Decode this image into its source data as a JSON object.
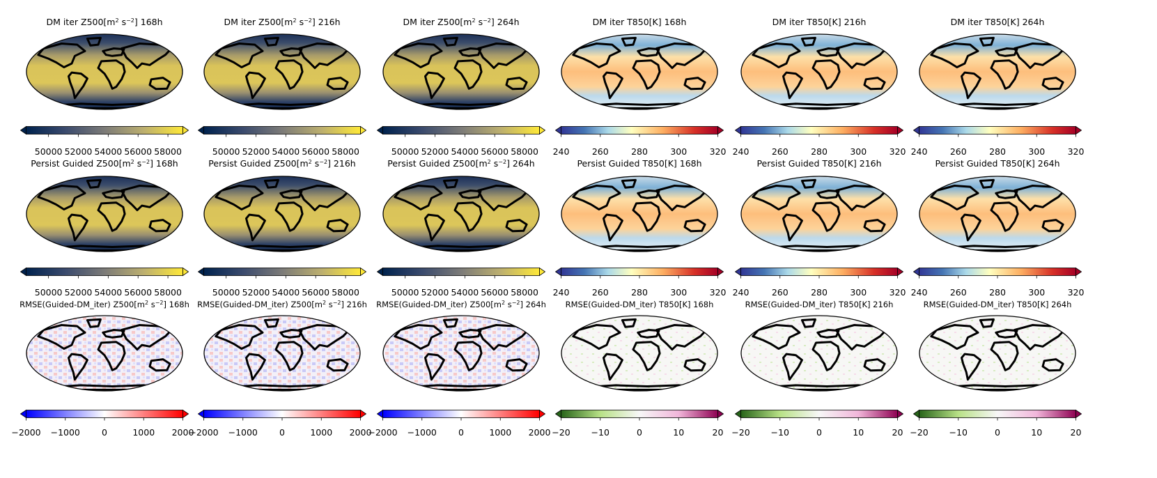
{
  "figure": {
    "rows": [
      {
        "panels": [
          {
            "title": "DM iter Z500[m$^2$ s$^{-2}$] 168h",
            "title_main": "DM iter Z500[m",
            "title_sup1": "2",
            "title_mid": " s",
            "title_sup2": "−2",
            "title_end": "] 168h",
            "colormap": "cividis",
            "field": "z500",
            "colorbar": {
              "ticks": [
                50000,
                52000,
                54000,
                56000,
                58000
              ],
              "range": [
                48500,
                59000
              ],
              "extend": "both"
            }
          },
          {
            "title_main": "DM iter Z500[m",
            "title_sup1": "2",
            "title_mid": " s",
            "title_sup2": "−2",
            "title_end": "] 216h",
            "colormap": "cividis",
            "field": "z500",
            "colorbar": {
              "ticks": [
                50000,
                52000,
                54000,
                56000,
                58000
              ],
              "range": [
                48500,
                59000
              ],
              "extend": "both"
            }
          },
          {
            "title_main": "DM iter Z500[m",
            "title_sup1": "2",
            "title_mid": " s",
            "title_sup2": "−2",
            "title_end": "] 264h",
            "colormap": "cividis",
            "field": "z500",
            "colorbar": {
              "ticks": [
                50000,
                52000,
                54000,
                56000,
                58000
              ],
              "range": [
                48500,
                59000
              ],
              "extend": "both"
            }
          },
          {
            "title_main": "DM iter T850[K] 168h",
            "colormap": "RdYlBu_r",
            "field": "t850",
            "colorbar": {
              "ticks": [
                240,
                260,
                280,
                300,
                320
              ],
              "range": [
                240,
                320
              ],
              "extend": "both"
            }
          },
          {
            "title_main": "DM iter T850[K] 216h",
            "colormap": "RdYlBu_r",
            "field": "t850",
            "colorbar": {
              "ticks": [
                240,
                260,
                280,
                300,
                320
              ],
              "range": [
                240,
                320
              ],
              "extend": "both"
            }
          },
          {
            "title_main": "DM iter T850[K] 264h",
            "colormap": "RdYlBu_r",
            "field": "t850",
            "colorbar": {
              "ticks": [
                240,
                260,
                280,
                300,
                320
              ],
              "range": [
                240,
                320
              ],
              "extend": "both"
            }
          }
        ]
      },
      {
        "panels": [
          {
            "title_main": "Persist Guided Z500[m",
            "title_sup1": "2",
            "title_mid": " s",
            "title_sup2": "−2",
            "title_end": "] 168h",
            "colormap": "cividis",
            "field": "z500",
            "colorbar": {
              "ticks": [
                50000,
                52000,
                54000,
                56000,
                58000
              ],
              "range": [
                48500,
                59000
              ],
              "extend": "both"
            }
          },
          {
            "title_main": "Persist Guided Z500[m",
            "title_sup1": "2",
            "title_mid": " s",
            "title_sup2": "−2",
            "title_end": "] 216h",
            "colormap": "cividis",
            "field": "z500",
            "colorbar": {
              "ticks": [
                50000,
                52000,
                54000,
                56000,
                58000
              ],
              "range": [
                48500,
                59000
              ],
              "extend": "both"
            }
          },
          {
            "title_main": "Persist Guided Z500[m",
            "title_sup1": "2",
            "title_mid": " s",
            "title_sup2": "−2",
            "title_end": "] 264h",
            "colormap": "cividis",
            "field": "z500",
            "colorbar": {
              "ticks": [
                50000,
                52000,
                54000,
                56000,
                58000
              ],
              "range": [
                48500,
                59000
              ],
              "extend": "both"
            }
          },
          {
            "title_main": "Persist Guided T850[K] 168h",
            "colormap": "RdYlBu_r",
            "field": "t850",
            "colorbar": {
              "ticks": [
                240,
                260,
                280,
                300,
                320
              ],
              "range": [
                240,
                320
              ],
              "extend": "both"
            }
          },
          {
            "title_main": "Persist Guided T850[K] 216h",
            "colormap": "RdYlBu_r",
            "field": "t850",
            "colorbar": {
              "ticks": [
                240,
                260,
                280,
                300,
                320
              ],
              "range": [
                240,
                320
              ],
              "extend": "both"
            }
          },
          {
            "title_main": "Persist Guided T850[K] 264h",
            "colormap": "RdYlBu_r",
            "field": "t850",
            "colorbar": {
              "ticks": [
                240,
                260,
                280,
                300,
                320
              ],
              "range": [
                240,
                320
              ],
              "extend": "both"
            }
          }
        ]
      },
      {
        "panels": [
          {
            "title_main": "RMSE(Guided-DM_iter) Z500[m",
            "title_sup1": "2",
            "title_mid": " s",
            "title_sup2": "−2",
            "title_end": "] 168h",
            "colormap": "bwr",
            "field": "diff_z",
            "colorbar": {
              "ticks": [
                -2000,
                -1000,
                0,
                1000,
                2000
              ],
              "range": [
                -2000,
                2000
              ],
              "extend": "both"
            }
          },
          {
            "title_main": "RMSE(Guided-DM_iter) Z500[m",
            "title_sup1": "2",
            "title_mid": " s",
            "title_sup2": "−2",
            "title_end": "] 216h",
            "colormap": "bwr",
            "field": "diff_z",
            "colorbar": {
              "ticks": [
                -2000,
                -1000,
                0,
                1000,
                2000
              ],
              "range": [
                -2000,
                2000
              ],
              "extend": "both"
            }
          },
          {
            "title_main": "RMSE(Guided-DM_iter) Z500[m",
            "title_sup1": "2",
            "title_mid": " s",
            "title_sup2": "−2",
            "title_end": "] 264h",
            "colormap": "bwr",
            "field": "diff_z",
            "colorbar": {
              "ticks": [
                -2000,
                -1000,
                0,
                1000,
                2000
              ],
              "range": [
                -2000,
                2000
              ],
              "extend": "both"
            }
          },
          {
            "title_main": "RMSE(Guided-DM_iter) T850[K] 168h",
            "colormap": "PiYG_r",
            "field": "diff_t",
            "colorbar": {
              "ticks": [
                -20,
                -10,
                0,
                10,
                20
              ],
              "range": [
                -20,
                20
              ],
              "extend": "both"
            }
          },
          {
            "title_main": "RMSE(Guided-DM_iter) T850[K] 216h",
            "colormap": "PiYG_r",
            "field": "diff_t",
            "colorbar": {
              "ticks": [
                -20,
                -10,
                0,
                10,
                20
              ],
              "range": [
                -20,
                20
              ],
              "extend": "both"
            }
          },
          {
            "title_main": "RMSE(Guided-DM_iter) T850[K] 264h",
            "colormap": "PiYG_r",
            "field": "diff_t",
            "colorbar": {
              "ticks": [
                -20,
                -10,
                0,
                10,
                20
              ],
              "range": [
                -20,
                20
              ],
              "extend": "both"
            }
          }
        ]
      }
    ]
  },
  "chart_data": {
    "type": "heatmap",
    "layout": "3x6 grid of global map panels (Robinson-like projection) each with a horizontal colorbar below",
    "variables": [
      "Z500",
      "T850"
    ],
    "lead_times": [
      "168h",
      "216h",
      "264h"
    ],
    "rows": [
      "DM iter",
      "Persist Guided",
      "RMSE(Guided-DM_iter)"
    ],
    "colorbars": {
      "Z500": {
        "ticks": [
          50000,
          52000,
          54000,
          56000,
          58000
        ]
      },
      "T850": {
        "ticks": [
          240,
          260,
          280,
          300,
          320
        ]
      },
      "Z500_diff": {
        "ticks": [
          -2000,
          -1000,
          0,
          1000,
          2000
        ]
      },
      "T850_diff": {
        "ticks": [
          -20,
          -10,
          0,
          10,
          20
        ]
      }
    }
  }
}
